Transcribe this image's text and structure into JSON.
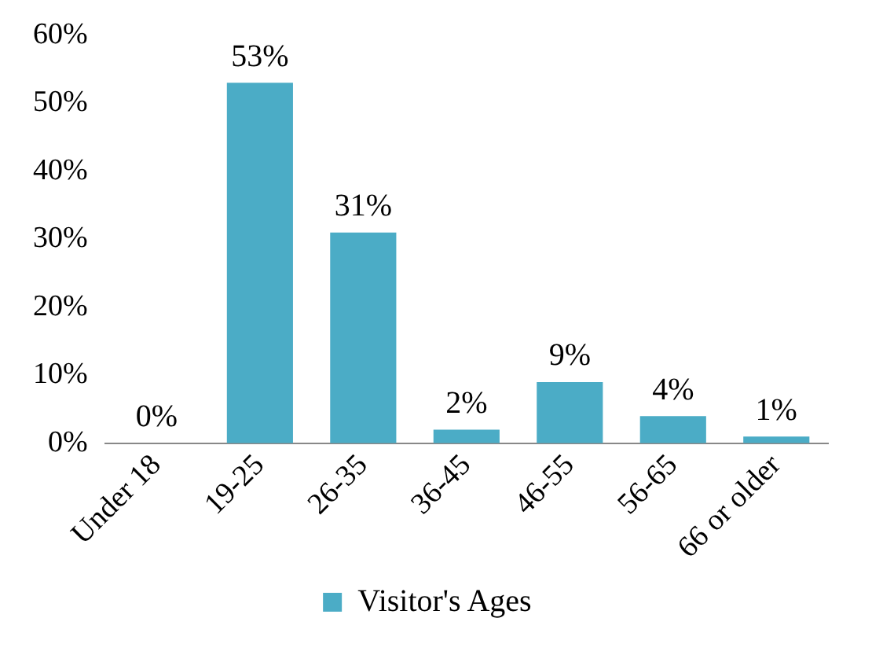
{
  "chart_data": {
    "type": "bar",
    "categories": [
      "Under 18",
      "19-25",
      "26-35",
      "36-45",
      "46-55",
      "56-65",
      "66 or older"
    ],
    "series": [
      {
        "name": "Visitor's Ages",
        "color": "#4bacc6",
        "values": [
          0,
          53,
          31,
          2,
          9,
          4,
          1
        ]
      }
    ],
    "value_labels": [
      "0%",
      "53%",
      "31%",
      "2%",
      "9%",
      "4%",
      "1%"
    ],
    "ylim": [
      0,
      60
    ],
    "yticks": [
      {
        "value": 0,
        "label": "0%"
      },
      {
        "value": 10,
        "label": "10%"
      },
      {
        "value": 20,
        "label": "20%"
      },
      {
        "value": 30,
        "label": "30%"
      },
      {
        "value": 40,
        "label": "40%"
      },
      {
        "value": 50,
        "label": "50%"
      },
      {
        "value": 60,
        "label": "60%"
      }
    ],
    "grid": false,
    "legend": "bottom"
  }
}
